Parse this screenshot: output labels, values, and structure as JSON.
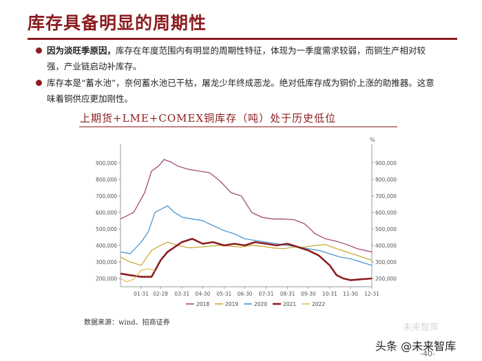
{
  "page": {
    "title": "库存具备明显的周期性",
    "bullets": [
      {
        "bold": "因为淡旺季原因，",
        "text": "库存在年度范围内有明显的周期性特征，体现为一季度需求较弱，而铜生产相对较强，产业链启动补库存。"
      },
      {
        "bold": "",
        "text": "库存本是“蓄水池”，奈何蓄水池已干枯，屠龙少年终成恶龙。绝对低库存成为铜价上涨的助推器。这意味着铜供应更加刚性。"
      }
    ],
    "chart_heading": "上期货+LME+COMEX铜库存（吨）处于历史低位",
    "source": "数据来源：wind、招商证券",
    "watermark": "未来智库",
    "footer_brand": "头条 @未来智库",
    "page_number": "-40-"
  },
  "chart_data": {
    "type": "line",
    "unit_label": "%",
    "x_ticks": [
      "01-31",
      "02-28",
      "03-31",
      "04-30",
      "05-31",
      "06-30",
      "07-31",
      "08-31",
      "09-30",
      "10-31",
      "11-30",
      "12-31"
    ],
    "y_ticks": [
      "200,000",
      "300,000",
      "400,000",
      "500,000",
      "600,000",
      "700,000",
      "800,000",
      "900,000"
    ],
    "ylim": [
      150000,
      970000
    ],
    "x_domain": [
      "01-01",
      "12-31"
    ],
    "series": [
      {
        "name": "2018",
        "color": "#9c3b6e",
        "x": [
          "01-01",
          "01-20",
          "02-05",
          "02-15",
          "02-25",
          "03-05",
          "03-15",
          "03-25",
          "04-10",
          "04-25",
          "05-10",
          "05-25",
          "06-10",
          "06-25",
          "07-10",
          "07-25",
          "08-10",
          "08-25",
          "09-10",
          "09-25",
          "10-10",
          "10-25",
          "11-10",
          "11-25",
          "12-10",
          "12-31"
        ],
        "y": [
          560000,
          600000,
          720000,
          850000,
          880000,
          920000,
          905000,
          880000,
          860000,
          850000,
          840000,
          790000,
          720000,
          700000,
          600000,
          570000,
          560000,
          560000,
          555000,
          530000,
          470000,
          440000,
          425000,
          405000,
          380000,
          360000
        ]
      },
      {
        "name": "2019",
        "color": "#c9a227",
        "x": [
          "01-01",
          "01-15",
          "01-31",
          "02-15",
          "02-28",
          "03-10",
          "03-25",
          "04-10",
          "04-25",
          "05-10",
          "05-25",
          "06-10",
          "06-25",
          "07-10",
          "07-25",
          "08-10",
          "08-25",
          "09-10",
          "09-25",
          "10-10",
          "10-25",
          "11-10",
          "11-25",
          "12-10",
          "12-31"
        ],
        "y": [
          330000,
          300000,
          280000,
          370000,
          400000,
          420000,
          400000,
          385000,
          390000,
          395000,
          400000,
          395000,
          390000,
          400000,
          395000,
          385000,
          380000,
          390000,
          390000,
          400000,
          405000,
          380000,
          360000,
          340000,
          310000
        ]
      },
      {
        "name": "2020",
        "color": "#3a8fcf",
        "x": [
          "01-01",
          "01-15",
          "01-31",
          "02-10",
          "02-20",
          "03-01",
          "03-10",
          "03-20",
          "04-01",
          "04-15",
          "04-30",
          "05-15",
          "05-31",
          "06-15",
          "06-30",
          "07-15",
          "07-31",
          "08-15",
          "08-31",
          "09-15",
          "09-30",
          "10-15",
          "10-31",
          "11-15",
          "11-30",
          "12-15",
          "12-31"
        ],
        "y": [
          360000,
          350000,
          420000,
          480000,
          600000,
          620000,
          640000,
          600000,
          570000,
          560000,
          550000,
          520000,
          490000,
          470000,
          440000,
          430000,
          420000,
          410000,
          400000,
          390000,
          380000,
          370000,
          350000,
          330000,
          320000,
          300000,
          280000
        ]
      },
      {
        "name": "2021",
        "color": "#8b1c1f",
        "x": [
          "01-01",
          "01-15",
          "01-31",
          "02-15",
          "02-28",
          "03-10",
          "03-31",
          "04-15",
          "04-30",
          "05-15",
          "05-31",
          "06-15",
          "06-30",
          "07-15",
          "07-31",
          "08-15",
          "08-31",
          "09-15",
          "09-30",
          "10-15",
          "10-31",
          "11-10",
          "11-20",
          "11-30",
          "12-15",
          "12-31"
        ],
        "y": [
          230000,
          220000,
          210000,
          210000,
          310000,
          360000,
          420000,
          440000,
          410000,
          420000,
          400000,
          410000,
          400000,
          420000,
          410000,
          400000,
          410000,
          390000,
          370000,
          340000,
          280000,
          220000,
          200000,
          190000,
          195000,
          200000
        ]
      },
      {
        "name": "2022",
        "color": "#e8b84a",
        "x": [
          "01-01",
          "01-10",
          "01-20",
          "01-31",
          "02-10",
          "02-20"
        ],
        "y": [
          200000,
          180000,
          195000,
          250000,
          260000,
          245000
        ]
      }
    ],
    "legend_placement": "bottom",
    "grid": false
  }
}
